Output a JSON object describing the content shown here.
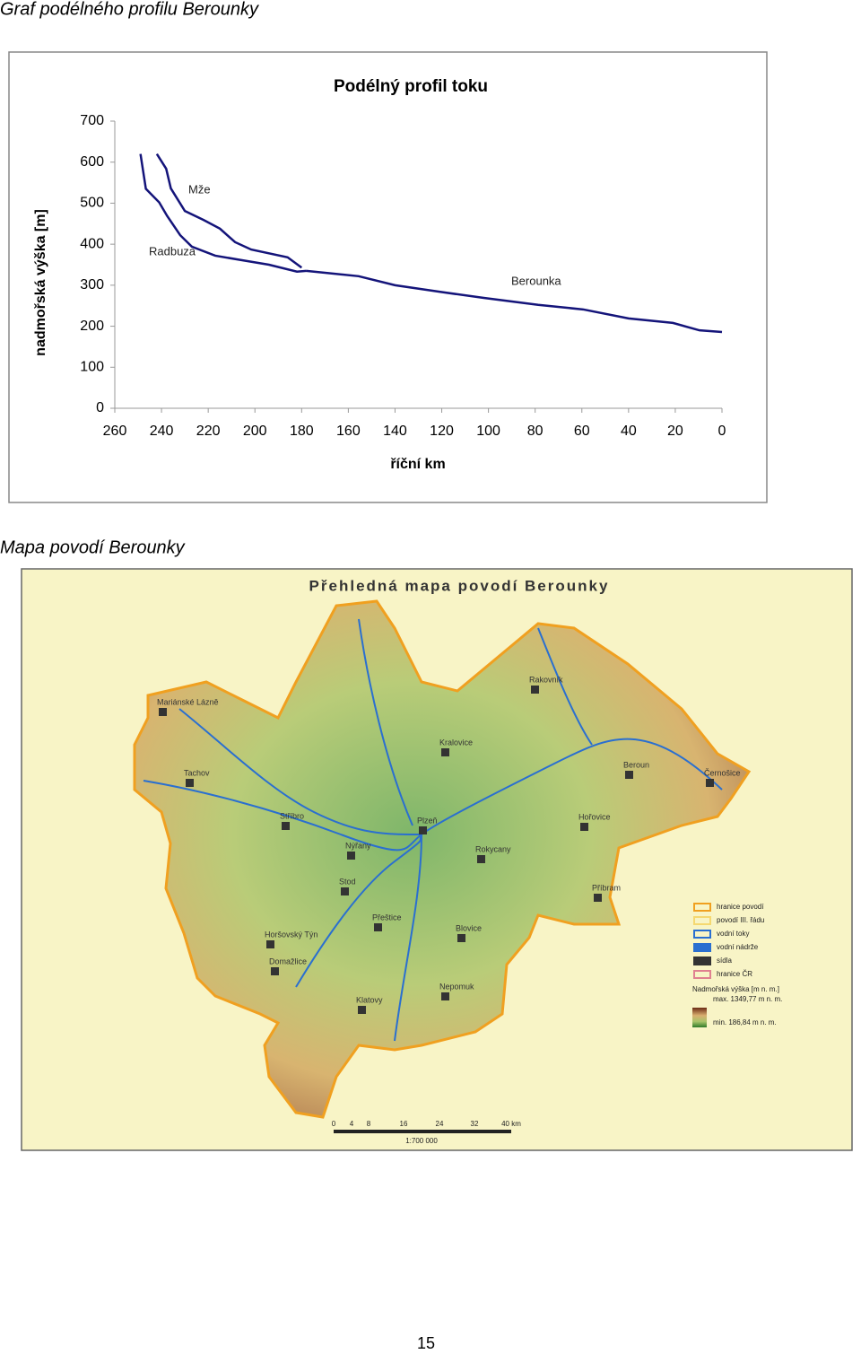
{
  "heading_chart": "Graf podélného profilu Berounky",
  "chart_data": {
    "type": "line",
    "title": "Podélný profil toku",
    "x_label": "říční km",
    "y_label": "nadmořská výška [m]",
    "xlim": [
      260,
      0
    ],
    "xticks": [
      260,
      240,
      220,
      200,
      180,
      160,
      140,
      120,
      100,
      80,
      60,
      40,
      20,
      0
    ],
    "ylim": [
      0,
      700
    ],
    "yticks": [
      0,
      100,
      200,
      300,
      400,
      500,
      600,
      700
    ],
    "series": [
      {
        "name": "Mže",
        "color": "#14147a",
        "x": [
          242,
          238,
          236,
          230,
          222,
          215,
          208.5,
          201.6,
          186,
          180
        ],
        "values": [
          620,
          584,
          536,
          481,
          459,
          438,
          405,
          387,
          368,
          343
        ]
      },
      {
        "name": "Radbuza",
        "color": "#14147a",
        "x": [
          249,
          246.7,
          241,
          237.6,
          232,
          227,
          217,
          205.5,
          194,
          182,
          178
        ],
        "values": [
          620,
          535,
          502,
          469,
          422,
          394,
          372,
          361,
          350,
          333,
          335
        ]
      },
      {
        "name": "Berounka",
        "color": "#14147a",
        "x": [
          178,
          155.6,
          140,
          121,
          102,
          78.7,
          59.5,
          40,
          21,
          9.6,
          0
        ],
        "values": [
          335,
          322,
          300,
          284,
          269,
          252,
          241,
          219,
          208,
          190,
          186
        ]
      }
    ]
  },
  "heading_map": "Mapa povodí Berounky",
  "map": {
    "title": "Přehledná mapa povodí Berounky",
    "towns": [
      "Mariánské Lázně",
      "Tachov",
      "Stříbro",
      "Nýřany",
      "Plzeň",
      "Rokycany",
      "Stod",
      "Přeštice",
      "Horšovský Týn",
      "Domažlice",
      "Blovice",
      "Nepomuk",
      "Klatovy",
      "Rakovník",
      "Beroun",
      "Černošice",
      "Hořovice",
      "Příbram",
      "Kralovice"
    ],
    "legend": [
      "hranice povodí",
      "povodí III. řádu",
      "vodní toky",
      "vodní nádrže",
      "sídla",
      "hranice ČR"
    ],
    "elevation_title": "Nadmořská výška [m n. m.]",
    "elevation_max": "max. 1349,77 m n. m.",
    "elevation_min": "min. 186,84 m n. m.",
    "scale_labels": [
      "0",
      "4",
      "8",
      "16",
      "24",
      "32",
      "40 km"
    ],
    "scale": "1:700 000"
  },
  "page_number": "15"
}
